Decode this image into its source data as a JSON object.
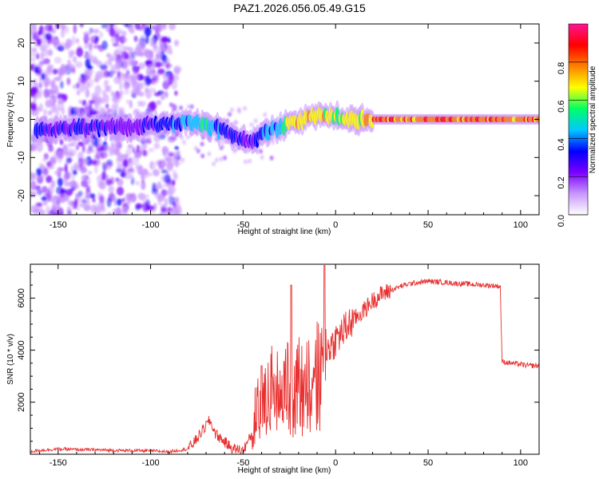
{
  "title": "PAZ1.2026.056.05.49.G15",
  "chart_data": [
    {
      "type": "heatmap",
      "xlabel": "Height of straight line (km)",
      "ylabel": "Frequency (Hz)",
      "xlim": [
        -165,
        110
      ],
      "ylim": [
        -25,
        25
      ],
      "x_ticks": [
        -150,
        -100,
        -50,
        0,
        50,
        100
      ],
      "y_ticks": [
        -20,
        -10,
        0,
        10,
        20
      ],
      "x_tick_labels": [
        "-150",
        "-100",
        "-50",
        "0",
        "50",
        "100"
      ],
      "y_tick_labels": [
        "-20",
        "-10",
        "0",
        "10",
        "20"
      ],
      "colorbar": {
        "label": "Normalized spectral amplitude",
        "range": [
          0,
          1
        ],
        "ticks": [
          0.0,
          0.2,
          0.4,
          0.6,
          0.8
        ],
        "tick_labels": [
          "0.0",
          "0.2",
          "0.4",
          "0.6",
          "0.8"
        ],
        "colors": [
          "#ffffff",
          "#c896ff",
          "#7a00ff",
          "#0000ff",
          "#00c8ff",
          "#00ff66",
          "#ffff00",
          "#ff8000",
          "#ff0000",
          "#ff1493"
        ]
      },
      "ridge": {
        "x": [
          -162,
          -150,
          -140,
          -130,
          -120,
          -110,
          -100,
          -90,
          -80,
          -70,
          -60,
          -55,
          -50,
          -45,
          -40,
          -35,
          -30,
          -25,
          -20,
          -15,
          -10,
          -5,
          0,
          10,
          20,
          50,
          90,
          108
        ],
        "y": [
          -2.5,
          -2.5,
          -2.2,
          -2.0,
          -2.2,
          -2.0,
          -1.5,
          -1.2,
          -0.8,
          -1.5,
          -3.0,
          -4.0,
          -5.5,
          -6.0,
          -4.0,
          -2.5,
          -2.0,
          -0.8,
          -0.5,
          0.5,
          1.5,
          0.8,
          0.3,
          -0.2,
          0.0,
          0.0,
          0.0,
          0.0
        ],
        "amplitude": [
          0.3,
          0.28,
          0.3,
          0.28,
          0.26,
          0.22,
          0.3,
          0.34,
          0.38,
          0.5,
          0.3,
          0.32,
          0.26,
          0.3,
          0.34,
          0.38,
          0.42,
          0.62,
          0.7,
          0.72,
          0.68,
          0.65,
          0.6,
          0.65,
          0.78,
          0.8,
          0.8,
          0.78
        ]
      }
    },
    {
      "type": "line",
      "xlabel": "Height of straight line (km)",
      "ylabel": "SNR (10 * v/v)",
      "xlim": [
        -165,
        110
      ],
      "ylim": [
        0,
        7300
      ],
      "x_ticks": [
        -150,
        -100,
        -50,
        0,
        50,
        100
      ],
      "y_ticks": [
        2000,
        4000,
        6000
      ],
      "x_tick_labels": [
        "-150",
        "-100",
        "-50",
        "0",
        "50",
        "100"
      ],
      "y_tick_labels": [
        "2000",
        "4000",
        "6000"
      ],
      "color": "#e83030",
      "series": [
        {
          "x": [
            -165,
            -160,
            -150,
            -140,
            -130,
            -120,
            -110,
            -100,
            -90,
            -80,
            -76,
            -72,
            -68,
            -65,
            -62,
            -58,
            -55,
            -50,
            -45,
            -42,
            -38,
            -35,
            -32,
            -28,
            -25,
            -20,
            -15,
            -10,
            -7,
            -5,
            -2,
            0,
            5,
            10,
            15,
            20,
            25,
            30,
            35,
            40,
            45,
            50,
            55,
            60,
            65,
            70,
            75,
            80,
            85,
            89,
            90,
            95,
            100,
            105,
            110
          ],
          "y": [
            100,
            150,
            200,
            180,
            170,
            150,
            140,
            130,
            100,
            200,
            500,
            900,
            1300,
            800,
            600,
            350,
            200,
            150,
            800,
            2500,
            2000,
            3200,
            2600,
            3000,
            2900,
            3300,
            3500,
            3800,
            3900,
            4100,
            4200,
            4400,
            4800,
            5200,
            5500,
            5900,
            6150,
            6300,
            6450,
            6550,
            6600,
            6650,
            6620,
            6600,
            6560,
            6550,
            6520,
            6500,
            6480,
            6450,
            3550,
            3500,
            3450,
            3400,
            3400
          ]
        }
      ]
    }
  ]
}
